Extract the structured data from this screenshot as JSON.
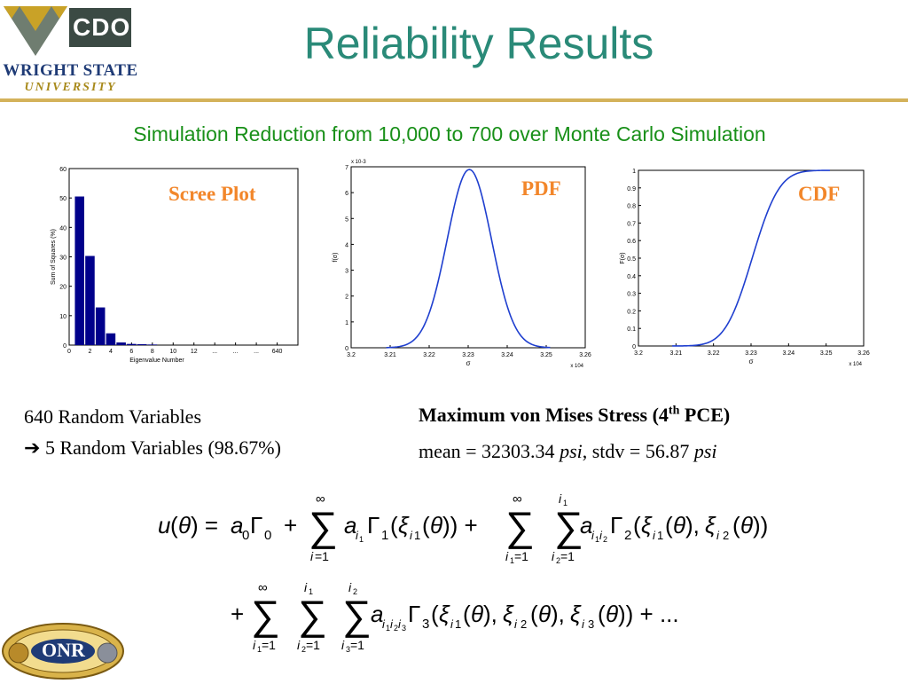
{
  "slide": {
    "title": "Reliability Results",
    "subtitle": "Simulation Reduction from 10,000 to 700 over Monte Carlo Simulation"
  },
  "logos": {
    "cdoc": "CDOC",
    "wright_state": "WRIGHT STATE",
    "university": "UNIVERSITY",
    "onr": "ONR"
  },
  "left_text": {
    "line1": "640 Random Variables",
    "line2_arrow": "➔",
    "line2": "5 Random Variables (98.67%)"
  },
  "right_text": {
    "heading_pre": "Maximum von Mises Stress (4",
    "heading_sup": "th",
    "heading_post": " PCE)",
    "stats_mean_label": "mean = 32303.34 ",
    "stats_mean_unit": "psi",
    "stats_stdv_label": ", stdv = 56.87 ",
    "stats_stdv_unit": "psi"
  },
  "colors": {
    "title": "#2a8a78",
    "subtitle": "#199019",
    "chart_label": "#f2862a",
    "rule": "#d4b25a",
    "bars": "#00008b",
    "curve": "#1f3fcf"
  },
  "chart_data": [
    {
      "type": "bar",
      "label": "Scree Plot",
      "xlabel": "Eigenvalue Number",
      "ylabel": "Sum of Squares (%)",
      "ylim": [
        0,
        60
      ],
      "yticks": [
        0,
        10,
        20,
        30,
        40,
        50,
        60
      ],
      "xticks": [
        "0",
        "2",
        "4",
        "6",
        "8",
        "10",
        "12",
        "...",
        "...",
        "...",
        "640"
      ],
      "x": [
        1,
        2,
        3,
        4,
        5,
        6,
        7,
        8
      ],
      "values": [
        50.5,
        30.3,
        12.8,
        4.0,
        0.9,
        0.4,
        0.3,
        0.2
      ],
      "grid": false
    },
    {
      "type": "line",
      "label": "PDF",
      "xlabel": "σ",
      "ylabel": "f(σ)",
      "y_multiplier": "x 10-3",
      "x_multiplier": "x 104",
      "xlim": [
        3.2,
        3.26
      ],
      "ylim": [
        0,
        7
      ],
      "xticks": [
        "3.2",
        "3.21",
        "3.22",
        "3.23",
        "3.24",
        "3.25",
        "3.26"
      ],
      "yticks": [
        "0",
        "1",
        "2",
        "3",
        "4",
        "5",
        "6",
        "7"
      ],
      "mean": 3.2303,
      "stdv": 0.005687,
      "x_range": [
        3.209,
        3.251
      ],
      "grid": false
    },
    {
      "type": "line",
      "label": "CDF",
      "xlabel": "σ",
      "ylabel": "F(σ)",
      "x_multiplier": "x 104",
      "xlim": [
        3.2,
        3.26
      ],
      "ylim": [
        0,
        1
      ],
      "xticks": [
        "3.2",
        "3.21",
        "3.22",
        "3.23",
        "3.24",
        "3.25",
        "3.26"
      ],
      "yticks": [
        "0",
        "0.1",
        "0.2",
        "0.3",
        "0.4",
        "0.5",
        "0.6",
        "0.7",
        "0.8",
        "0.9",
        "1"
      ],
      "mean": 3.2303,
      "stdv": 0.005687,
      "x_range": [
        3.209,
        3.251
      ],
      "grid": false
    }
  ]
}
